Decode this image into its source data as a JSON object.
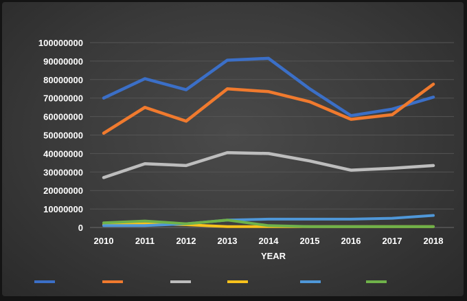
{
  "chart_data": {
    "type": "line",
    "title": "",
    "xlabel": "YEAR",
    "ylabel": "",
    "ylim": [
      0,
      100000000
    ],
    "yticks": [
      0,
      10000000,
      20000000,
      30000000,
      40000000,
      50000000,
      60000000,
      70000000,
      80000000,
      90000000,
      100000000
    ],
    "grid": true,
    "legend": "bottom",
    "x": [
      "2010",
      "2011",
      "2012",
      "2013",
      "2014",
      "2015",
      "2016",
      "2017",
      "2018"
    ],
    "series": [
      {
        "color": "#3b6fc7",
        "values": [
          70000000,
          80500000,
          74500000,
          90500000,
          91500000,
          75000000,
          60500000,
          64000000,
          70500000
        ]
      },
      {
        "color": "#f07a2e",
        "values": [
          51000000,
          65000000,
          57500000,
          75000000,
          73500000,
          68000000,
          58500000,
          61000000,
          77500000
        ]
      },
      {
        "color": "#bdbdbd",
        "values": [
          27000000,
          34500000,
          33500000,
          40500000,
          40000000,
          36000000,
          31000000,
          32000000,
          33500000
        ]
      },
      {
        "color": "#f9c21c",
        "values": [
          1500000,
          2000000,
          1500000,
          500000,
          500000,
          500000,
          500000,
          500000,
          500000
        ]
      },
      {
        "color": "#4f97d8",
        "values": [
          1000000,
          1000000,
          2000000,
          4000000,
          4500000,
          4500000,
          4500000,
          5000000,
          6500000
        ]
      },
      {
        "color": "#6fb24a",
        "values": [
          2500000,
          3500000,
          2000000,
          4000000,
          1000000,
          500000,
          500000,
          500000,
          500000
        ]
      }
    ]
  }
}
